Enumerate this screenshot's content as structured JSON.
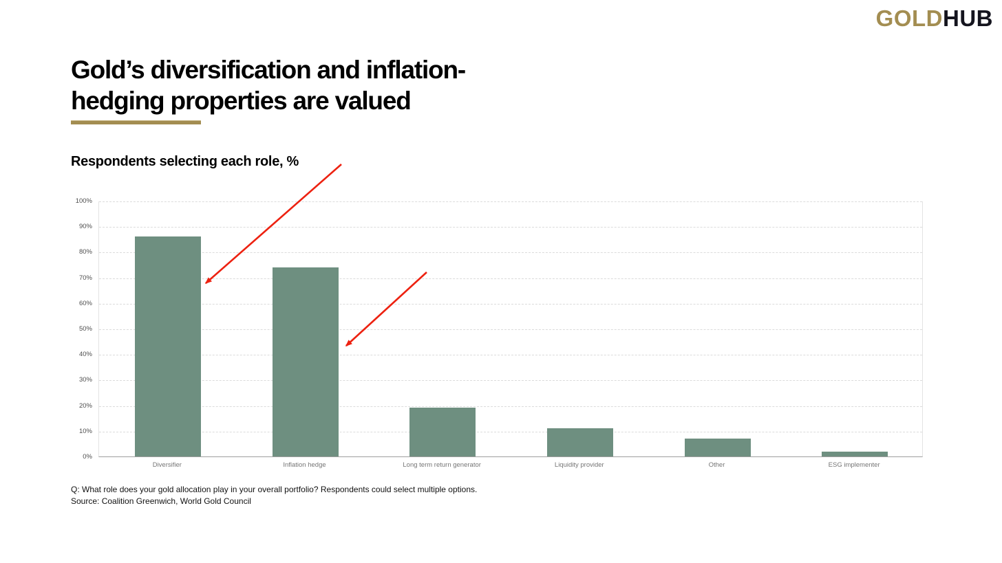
{
  "logo": {
    "gold": "GOLD",
    "hub": "HUB"
  },
  "title": {
    "line1": "Gold’s diversification and inflation-",
    "line2": "hedging properties are valued"
  },
  "subtitle": "Respondents selecting each role, %",
  "chart_data": {
    "type": "bar",
    "title": "Respondents selecting each role, %",
    "categories": [
      "Diversifier",
      "Inflation hedge",
      "Long term return generator",
      "Liquidity provider",
      "Other",
      "ESG implementer"
    ],
    "values": [
      86,
      74,
      19,
      11,
      7,
      2
    ],
    "unit": "%",
    "xlabel": "",
    "ylabel": "",
    "ylim": [
      0,
      100
    ],
    "ytick_step": 10,
    "ytick_suffix": "%",
    "grid": true,
    "legend": false,
    "bar_color": "#6E8F80",
    "annotations": [
      {
        "type": "arrow",
        "points_to": "Diversifier",
        "color": "#ED2110"
      },
      {
        "type": "arrow",
        "points_to": "Inflation hedge",
        "color": "#ED2110"
      }
    ]
  },
  "footnotes": {
    "question": "Q: What role does your gold allocation play in your overall portfolio? Respondents could select multiple options.",
    "source": "Source: Coalition Greenwich, World Gold Council"
  },
  "colors": {
    "accent_gold": "#A38D51",
    "logo_dark": "#14141E",
    "bar_green": "#6E8F80",
    "arrow_red": "#ED2110",
    "axis_text": "#4D4D4D",
    "category_text": "#757575",
    "gridline": "#DBDBDB",
    "axis_line": "#9E9E9E"
  }
}
